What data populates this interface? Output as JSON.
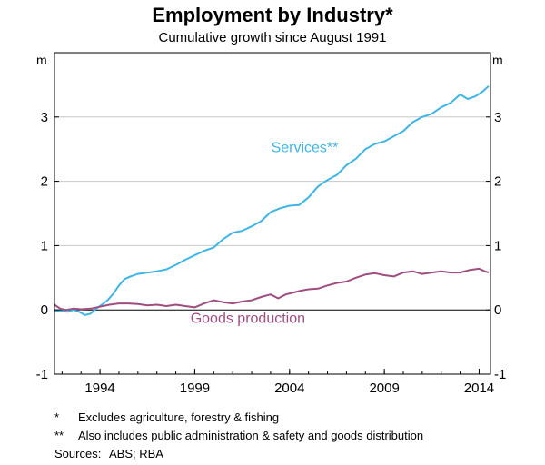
{
  "chart_data": {
    "type": "line",
    "title": "Employment by Industry*",
    "subtitle": "Cumulative growth since August 1991",
    "y_unit_left": "m",
    "y_unit_right": "m",
    "xlim": [
      1991.6,
      2014.6
    ],
    "ylim": [
      -1,
      4
    ],
    "x_ticks": [
      {
        "value": 1994,
        "label": "1994"
      },
      {
        "value": 1999,
        "label": "1999"
      },
      {
        "value": 2004,
        "label": "2004"
      },
      {
        "value": 2009,
        "label": "2009"
      },
      {
        "value": 2014,
        "label": "2014"
      }
    ],
    "y_ticks": [
      {
        "value": -1,
        "label": "-1"
      },
      {
        "value": 0,
        "label": "0"
      },
      {
        "value": 1,
        "label": "1"
      },
      {
        "value": 2,
        "label": "2"
      },
      {
        "value": 3,
        "label": "3"
      }
    ],
    "grid": true,
    "series": [
      {
        "name": "Services**",
        "color": "#3fb5e6",
        "points": [
          [
            1991.6,
            -0.02
          ],
          [
            1992.0,
            -0.02
          ],
          [
            1992.3,
            -0.03
          ],
          [
            1992.6,
            0.0
          ],
          [
            1992.9,
            -0.03
          ],
          [
            1993.2,
            -0.08
          ],
          [
            1993.5,
            -0.06
          ],
          [
            1993.8,
            0.02
          ],
          [
            1994.1,
            0.08
          ],
          [
            1994.4,
            0.15
          ],
          [
            1994.7,
            0.25
          ],
          [
            1995.0,
            0.38
          ],
          [
            1995.3,
            0.48
          ],
          [
            1995.6,
            0.52
          ],
          [
            1996.0,
            0.56
          ],
          [
            1996.5,
            0.58
          ],
          [
            1997.0,
            0.6
          ],
          [
            1997.5,
            0.63
          ],
          [
            1998.0,
            0.7
          ],
          [
            1998.5,
            0.78
          ],
          [
            1999.0,
            0.85
          ],
          [
            1999.5,
            0.92
          ],
          [
            2000.0,
            0.97
          ],
          [
            2000.5,
            1.1
          ],
          [
            2001.0,
            1.2
          ],
          [
            2001.5,
            1.23
          ],
          [
            2002.0,
            1.3
          ],
          [
            2002.5,
            1.38
          ],
          [
            2003.0,
            1.52
          ],
          [
            2003.5,
            1.58
          ],
          [
            2004.0,
            1.62
          ],
          [
            2004.5,
            1.63
          ],
          [
            2005.0,
            1.75
          ],
          [
            2005.5,
            1.92
          ],
          [
            2006.0,
            2.02
          ],
          [
            2006.5,
            2.1
          ],
          [
            2007.0,
            2.25
          ],
          [
            2007.5,
            2.35
          ],
          [
            2008.0,
            2.5
          ],
          [
            2008.5,
            2.58
          ],
          [
            2009.0,
            2.62
          ],
          [
            2009.5,
            2.7
          ],
          [
            2010.0,
            2.78
          ],
          [
            2010.5,
            2.92
          ],
          [
            2011.0,
            3.0
          ],
          [
            2011.5,
            3.05
          ],
          [
            2012.0,
            3.15
          ],
          [
            2012.5,
            3.22
          ],
          [
            2013.0,
            3.35
          ],
          [
            2013.4,
            3.28
          ],
          [
            2013.8,
            3.32
          ],
          [
            2014.2,
            3.4
          ],
          [
            2014.5,
            3.48
          ]
        ]
      },
      {
        "name": "Goods production",
        "color": "#a04d80",
        "points": [
          [
            1991.6,
            0.08
          ],
          [
            1991.9,
            0.02
          ],
          [
            1992.2,
            0.0
          ],
          [
            1992.6,
            0.02
          ],
          [
            1993.0,
            0.01
          ],
          [
            1993.5,
            0.02
          ],
          [
            1994.0,
            0.05
          ],
          [
            1994.5,
            0.08
          ],
          [
            1995.0,
            0.1
          ],
          [
            1995.5,
            0.1
          ],
          [
            1996.0,
            0.09
          ],
          [
            1996.5,
            0.07
          ],
          [
            1997.0,
            0.08
          ],
          [
            1997.5,
            0.06
          ],
          [
            1998.0,
            0.08
          ],
          [
            1998.5,
            0.06
          ],
          [
            1999.0,
            0.04
          ],
          [
            1999.5,
            0.1
          ],
          [
            2000.0,
            0.15
          ],
          [
            2000.5,
            0.12
          ],
          [
            2001.0,
            0.1
          ],
          [
            2001.5,
            0.13
          ],
          [
            2002.0,
            0.15
          ],
          [
            2002.5,
            0.2
          ],
          [
            2003.0,
            0.24
          ],
          [
            2003.4,
            0.18
          ],
          [
            2003.8,
            0.24
          ],
          [
            2004.2,
            0.27
          ],
          [
            2004.6,
            0.3
          ],
          [
            2005.0,
            0.32
          ],
          [
            2005.5,
            0.33
          ],
          [
            2006.0,
            0.38
          ],
          [
            2006.5,
            0.42
          ],
          [
            2007.0,
            0.44
          ],
          [
            2007.5,
            0.5
          ],
          [
            2008.0,
            0.55
          ],
          [
            2008.5,
            0.57
          ],
          [
            2009.0,
            0.54
          ],
          [
            2009.5,
            0.52
          ],
          [
            2010.0,
            0.58
          ],
          [
            2010.5,
            0.6
          ],
          [
            2011.0,
            0.56
          ],
          [
            2011.5,
            0.58
          ],
          [
            2012.0,
            0.6
          ],
          [
            2012.5,
            0.58
          ],
          [
            2013.0,
            0.58
          ],
          [
            2013.5,
            0.62
          ],
          [
            2014.0,
            0.64
          ],
          [
            2014.3,
            0.6
          ],
          [
            2014.5,
            0.58
          ]
        ]
      }
    ],
    "annotations": [
      {
        "text": "Services**",
        "series": 0,
        "x": 2004.8,
        "y": 2.45
      },
      {
        "text": "Goods production",
        "series": 1,
        "x": 2001.8,
        "y": -0.2
      }
    ]
  },
  "notes": [
    {
      "mark": "*",
      "text": "Excludes agriculture, forestry & fishing"
    },
    {
      "mark": "**",
      "text": "Also includes public administration & safety and goods distribution"
    }
  ],
  "sources": {
    "label": "Sources:",
    "text": "ABS; RBA"
  }
}
